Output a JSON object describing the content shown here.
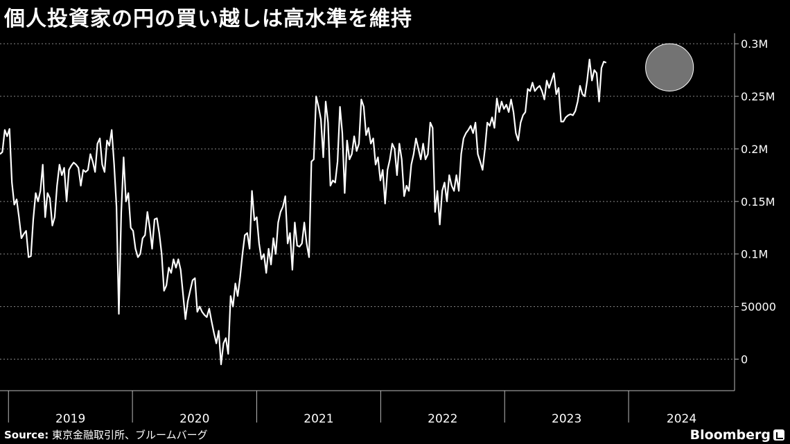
{
  "title": "個人投資家の円の買い越しは高水準を維持",
  "source_label": "Source:",
  "source_text": "東京金融取引所、ブルームバーグ",
  "brand": "Bloomberg",
  "chart_data": {
    "type": "line",
    "title": "個人投資家の円の買い越しは高水準を維持",
    "xlabel": "",
    "ylabel": "",
    "ylim": [
      -30000,
      310000
    ],
    "yticks": [
      0,
      50000,
      100000,
      150000,
      200000,
      250000,
      300000
    ],
    "ytick_labels": [
      "0",
      "50000",
      "0.1M",
      "0.15M",
      "0.2M",
      "0.25M",
      "0.3M"
    ],
    "xlim": [
      "2018-12-07",
      "2024-11-08"
    ],
    "year_labels": [
      "2019",
      "2020",
      "2021",
      "2022",
      "2023",
      "2024"
    ],
    "grid": "horizontal dashed",
    "highlight_ellipse": {
      "x_from": "2024-02-20",
      "x_to": "2024-07-10",
      "y_from": 255000,
      "y_to": 300000
    },
    "series": [
      {
        "name": "",
        "points": [
          [
            "2018-12-07",
            195000
          ],
          [
            "2018-12-14",
            197000
          ],
          [
            "2018-12-21",
            218000
          ],
          [
            "2018-12-28",
            212000
          ],
          [
            "2019-01-04",
            219000
          ],
          [
            "2019-01-11",
            168000
          ],
          [
            "2019-01-18",
            147000
          ],
          [
            "2019-01-25",
            152000
          ],
          [
            "2019-02-01",
            135000
          ],
          [
            "2019-02-08",
            115000
          ],
          [
            "2019-02-15",
            119000
          ],
          [
            "2019-02-22",
            122000
          ],
          [
            "2019-03-01",
            97000
          ],
          [
            "2019-03-08",
            98000
          ],
          [
            "2019-03-15",
            133000
          ],
          [
            "2019-03-22",
            158000
          ],
          [
            "2019-03-29",
            150000
          ],
          [
            "2019-04-05",
            160000
          ],
          [
            "2019-04-12",
            185000
          ],
          [
            "2019-04-19",
            135000
          ],
          [
            "2019-04-26",
            158000
          ],
          [
            "2019-05-03",
            153000
          ],
          [
            "2019-05-10",
            127000
          ],
          [
            "2019-05-17",
            135000
          ],
          [
            "2019-05-24",
            165000
          ],
          [
            "2019-05-31",
            185000
          ],
          [
            "2019-06-07",
            175000
          ],
          [
            "2019-06-14",
            182000
          ],
          [
            "2019-06-21",
            150000
          ],
          [
            "2019-06-28",
            180000
          ],
          [
            "2019-07-05",
            184000
          ],
          [
            "2019-07-12",
            187000
          ],
          [
            "2019-07-19",
            185000
          ],
          [
            "2019-07-26",
            182000
          ],
          [
            "2019-08-02",
            165000
          ],
          [
            "2019-08-09",
            180000
          ],
          [
            "2019-08-16",
            178000
          ],
          [
            "2019-08-23",
            180000
          ],
          [
            "2019-08-30",
            195000
          ],
          [
            "2019-09-06",
            188000
          ],
          [
            "2019-09-13",
            178000
          ],
          [
            "2019-09-20",
            205000
          ],
          [
            "2019-09-27",
            210000
          ],
          [
            "2019-10-04",
            185000
          ],
          [
            "2019-10-11",
            178000
          ],
          [
            "2019-10-18",
            208000
          ],
          [
            "2019-10-25",
            203000
          ],
          [
            "2019-11-01",
            218000
          ],
          [
            "2019-11-08",
            185000
          ],
          [
            "2019-11-15",
            145000
          ],
          [
            "2019-11-22",
            43000
          ],
          [
            "2019-11-29",
            140000
          ],
          [
            "2019-12-06",
            192000
          ],
          [
            "2019-12-13",
            150000
          ],
          [
            "2019-12-20",
            158000
          ],
          [
            "2019-12-27",
            125000
          ],
          [
            "2020-01-03",
            122000
          ],
          [
            "2020-01-10",
            105000
          ],
          [
            "2020-01-17",
            97000
          ],
          [
            "2020-01-24",
            100000
          ],
          [
            "2020-01-31",
            115000
          ],
          [
            "2020-02-07",
            118000
          ],
          [
            "2020-02-14",
            140000
          ],
          [
            "2020-02-21",
            125000
          ],
          [
            "2020-02-28",
            105000
          ],
          [
            "2020-03-06",
            133000
          ],
          [
            "2020-03-13",
            134000
          ],
          [
            "2020-03-20",
            120000
          ],
          [
            "2020-03-27",
            100000
          ],
          [
            "2020-04-03",
            65000
          ],
          [
            "2020-04-10",
            70000
          ],
          [
            "2020-04-17",
            87000
          ],
          [
            "2020-04-24",
            82000
          ],
          [
            "2020-05-01",
            95000
          ],
          [
            "2020-05-08",
            87000
          ],
          [
            "2020-05-15",
            95000
          ],
          [
            "2020-05-22",
            85000
          ],
          [
            "2020-05-29",
            62000
          ],
          [
            "2020-06-05",
            38000
          ],
          [
            "2020-06-12",
            55000
          ],
          [
            "2020-06-19",
            65000
          ],
          [
            "2020-06-26",
            75000
          ],
          [
            "2020-07-03",
            77000
          ],
          [
            "2020-07-10",
            45000
          ],
          [
            "2020-07-17",
            50000
          ],
          [
            "2020-07-24",
            45000
          ],
          [
            "2020-07-31",
            42000
          ],
          [
            "2020-08-07",
            40000
          ],
          [
            "2020-08-14",
            48000
          ],
          [
            "2020-08-21",
            36000
          ],
          [
            "2020-08-28",
            25000
          ],
          [
            "2020-09-04",
            15000
          ],
          [
            "2020-09-11",
            27000
          ],
          [
            "2020-09-18",
            -5000
          ],
          [
            "2020-09-25",
            15000
          ],
          [
            "2020-10-02",
            20000
          ],
          [
            "2020-10-09",
            5000
          ],
          [
            "2020-10-16",
            60000
          ],
          [
            "2020-10-23",
            50000
          ],
          [
            "2020-10-30",
            72000
          ],
          [
            "2020-11-06",
            60000
          ],
          [
            "2020-11-13",
            78000
          ],
          [
            "2020-11-20",
            100000
          ],
          [
            "2020-11-27",
            118000
          ],
          [
            "2020-12-04",
            120000
          ],
          [
            "2020-12-11",
            105000
          ],
          [
            "2020-12-18",
            160000
          ],
          [
            "2020-12-25",
            132000
          ],
          [
            "2021-01-01",
            135000
          ],
          [
            "2021-01-08",
            110000
          ],
          [
            "2021-01-15",
            95000
          ],
          [
            "2021-01-22",
            100000
          ],
          [
            "2021-01-29",
            82000
          ],
          [
            "2021-02-05",
            105000
          ],
          [
            "2021-02-12",
            90000
          ],
          [
            "2021-02-19",
            115000
          ],
          [
            "2021-02-26",
            100000
          ],
          [
            "2021-03-05",
            130000
          ],
          [
            "2021-03-12",
            140000
          ],
          [
            "2021-03-19",
            145000
          ],
          [
            "2021-03-26",
            155000
          ],
          [
            "2021-04-02",
            110000
          ],
          [
            "2021-04-09",
            120000
          ],
          [
            "2021-04-16",
            85000
          ],
          [
            "2021-04-23",
            130000
          ],
          [
            "2021-04-30",
            108000
          ],
          [
            "2021-05-07",
            107000
          ],
          [
            "2021-05-14",
            110000
          ],
          [
            "2021-05-21",
            130000
          ],
          [
            "2021-05-28",
            110000
          ],
          [
            "2021-06-04",
            97000
          ],
          [
            "2021-06-11",
            188000
          ],
          [
            "2021-06-18",
            190000
          ],
          [
            "2021-06-25",
            250000
          ],
          [
            "2021-07-02",
            240000
          ],
          [
            "2021-07-09",
            228000
          ],
          [
            "2021-07-16",
            192000
          ],
          [
            "2021-07-23",
            245000
          ],
          [
            "2021-07-30",
            225000
          ],
          [
            "2021-08-06",
            165000
          ],
          [
            "2021-08-13",
            170000
          ],
          [
            "2021-08-20",
            168000
          ],
          [
            "2021-08-27",
            188000
          ],
          [
            "2021-09-03",
            240000
          ],
          [
            "2021-09-10",
            215000
          ],
          [
            "2021-09-17",
            158000
          ],
          [
            "2021-09-24",
            208000
          ],
          [
            "2021-10-01",
            190000
          ],
          [
            "2021-10-08",
            195000
          ],
          [
            "2021-10-15",
            212000
          ],
          [
            "2021-10-22",
            198000
          ],
          [
            "2021-10-29",
            205000
          ],
          [
            "2021-11-05",
            247000
          ],
          [
            "2021-11-12",
            240000
          ],
          [
            "2021-11-19",
            213000
          ],
          [
            "2021-11-26",
            220000
          ],
          [
            "2021-12-03",
            205000
          ],
          [
            "2021-12-10",
            210000
          ],
          [
            "2021-12-17",
            185000
          ],
          [
            "2021-12-24",
            192000
          ],
          [
            "2021-12-31",
            170000
          ],
          [
            "2022-01-07",
            180000
          ],
          [
            "2022-01-14",
            148000
          ],
          [
            "2022-01-21",
            180000
          ],
          [
            "2022-01-28",
            190000
          ],
          [
            "2022-02-04",
            205000
          ],
          [
            "2022-02-11",
            200000
          ],
          [
            "2022-02-18",
            175000
          ],
          [
            "2022-02-25",
            205000
          ],
          [
            "2022-03-04",
            190000
          ],
          [
            "2022-03-11",
            155000
          ],
          [
            "2022-03-18",
            165000
          ],
          [
            "2022-03-25",
            160000
          ],
          [
            "2022-04-01",
            185000
          ],
          [
            "2022-04-08",
            195000
          ],
          [
            "2022-04-15",
            210000
          ],
          [
            "2022-04-22",
            200000
          ],
          [
            "2022-04-29",
            190000
          ],
          [
            "2022-05-06",
            205000
          ],
          [
            "2022-05-13",
            190000
          ],
          [
            "2022-05-20",
            195000
          ],
          [
            "2022-05-27",
            225000
          ],
          [
            "2022-06-03",
            220000
          ],
          [
            "2022-06-10",
            140000
          ],
          [
            "2022-06-17",
            160000
          ],
          [
            "2022-06-24",
            128000
          ],
          [
            "2022-07-01",
            160000
          ],
          [
            "2022-07-08",
            168000
          ],
          [
            "2022-07-15",
            150000
          ],
          [
            "2022-07-22",
            175000
          ],
          [
            "2022-07-29",
            165000
          ],
          [
            "2022-08-05",
            160000
          ],
          [
            "2022-08-12",
            175000
          ],
          [
            "2022-08-19",
            160000
          ],
          [
            "2022-08-26",
            195000
          ],
          [
            "2022-09-02",
            210000
          ],
          [
            "2022-09-09",
            215000
          ],
          [
            "2022-09-16",
            218000
          ],
          [
            "2022-09-23",
            222000
          ],
          [
            "2022-09-30",
            215000
          ],
          [
            "2022-10-07",
            225000
          ],
          [
            "2022-10-14",
            195000
          ],
          [
            "2022-10-21",
            188000
          ],
          [
            "2022-10-28",
            180000
          ],
          [
            "2022-11-04",
            200000
          ],
          [
            "2022-11-11",
            225000
          ],
          [
            "2022-11-18",
            222000
          ],
          [
            "2022-11-25",
            230000
          ],
          [
            "2022-12-02",
            220000
          ],
          [
            "2022-12-09",
            248000
          ],
          [
            "2022-12-16",
            235000
          ],
          [
            "2022-12-23",
            245000
          ],
          [
            "2022-12-30",
            238000
          ],
          [
            "2023-01-06",
            242000
          ],
          [
            "2023-01-13",
            235000
          ],
          [
            "2023-01-20",
            247000
          ],
          [
            "2023-01-27",
            235000
          ],
          [
            "2023-02-03",
            215000
          ],
          [
            "2023-02-10",
            208000
          ],
          [
            "2023-02-17",
            225000
          ],
          [
            "2023-02-24",
            232000
          ],
          [
            "2023-03-03",
            235000
          ],
          [
            "2023-03-10",
            257000
          ],
          [
            "2023-03-17",
            255000
          ],
          [
            "2023-03-24",
            263000
          ],
          [
            "2023-03-31",
            255000
          ],
          [
            "2023-04-07",
            258000
          ],
          [
            "2023-04-14",
            260000
          ],
          [
            "2023-04-21",
            255000
          ],
          [
            "2023-04-28",
            247000
          ],
          [
            "2023-05-05",
            265000
          ],
          [
            "2023-05-12",
            258000
          ],
          [
            "2023-05-19",
            265000
          ],
          [
            "2023-05-26",
            272000
          ],
          [
            "2023-06-02",
            252000
          ],
          [
            "2023-06-09",
            258000
          ],
          [
            "2023-06-16",
            226000
          ],
          [
            "2023-06-23",
            226000
          ],
          [
            "2023-06-30",
            230000
          ],
          [
            "2023-07-07",
            232000
          ],
          [
            "2023-07-14",
            233000
          ],
          [
            "2023-07-21",
            232000
          ],
          [
            "2023-07-28",
            236000
          ],
          [
            "2023-08-04",
            245000
          ],
          [
            "2023-08-11",
            260000
          ],
          [
            "2023-08-18",
            252000
          ],
          [
            "2023-08-25",
            250000
          ],
          [
            "2023-09-01",
            265000
          ],
          [
            "2023-09-08",
            285000
          ],
          [
            "2023-09-15",
            265000
          ],
          [
            "2023-09-22",
            275000
          ],
          [
            "2023-09-29",
            272000
          ],
          [
            "2023-10-06",
            245000
          ],
          [
            "2023-10-13",
            277000
          ],
          [
            "2023-10-20",
            283000
          ],
          [
            "2023-10-27",
            282000
          ]
        ]
      }
    ]
  }
}
